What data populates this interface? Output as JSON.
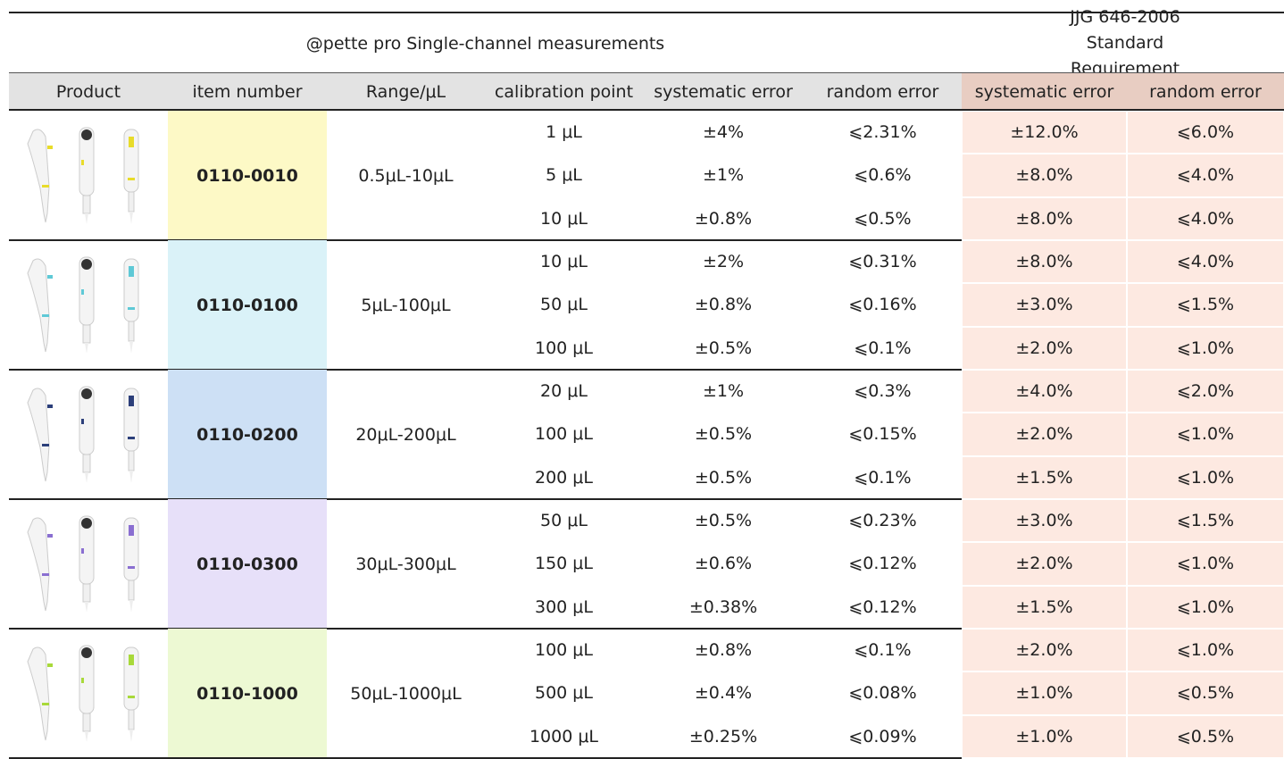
{
  "header": {
    "title": "@pette pro Single-channel  measurements",
    "standard": "JJG 646-2006 Standard Requirement"
  },
  "columns": [
    "Product",
    "item number",
    "Range/μL",
    "calibration point",
    "systematic error",
    "random error",
    "systematic error",
    "random error"
  ],
  "groups": [
    {
      "item": "0110-0010",
      "range": "0.5μL-10μL",
      "rows": [
        [
          "1 μL",
          "±4%",
          "⩽2.31%",
          "±12.0%",
          "⩽6.0%"
        ],
        [
          "5 μL",
          "±1%",
          "⩽0.6%",
          "±8.0%",
          "⩽4.0%"
        ],
        [
          "10 μL",
          "±0.8%",
          "⩽0.5%",
          "±8.0%",
          "⩽4.0%"
        ]
      ]
    },
    {
      "item": "0110-0100",
      "range": "5μL-100μL",
      "rows": [
        [
          "10 μL",
          "±2%",
          "⩽0.31%",
          "±8.0%",
          "⩽4.0%"
        ],
        [
          "50 μL",
          "±0.8%",
          "⩽0.16%",
          "±3.0%",
          "⩽1.5%"
        ],
        [
          "100 μL",
          "±0.5%",
          "⩽0.1%",
          "±2.0%",
          "⩽1.0%"
        ]
      ]
    },
    {
      "item": "0110-0200",
      "range": "20μL-200μL",
      "rows": [
        [
          "20 μL",
          "±1%",
          "⩽0.3%",
          "±4.0%",
          "⩽2.0%"
        ],
        [
          "100 μL",
          "±0.5%",
          "⩽0.15%",
          "±2.0%",
          "⩽1.0%"
        ],
        [
          "200 μL",
          "±0.5%",
          "⩽0.1%",
          "±1.5%",
          "⩽1.0%"
        ]
      ]
    },
    {
      "item": "0110-0300",
      "range": "30μL-300μL",
      "rows": [
        [
          "50 μL",
          "±0.5%",
          "⩽0.23%",
          "±3.0%",
          "⩽1.5%"
        ],
        [
          "150 μL",
          "±0.6%",
          "⩽0.12%",
          "±2.0%",
          "⩽1.0%"
        ],
        [
          "300 μL",
          "±0.38%",
          "⩽0.12%",
          "±1.5%",
          "⩽1.0%"
        ]
      ]
    },
    {
      "item": "0110-1000",
      "range": "50μL-1000μL",
      "rows": [
        [
          "100 μL",
          "±0.8%",
          "⩽0.1%",
          "±2.0%",
          "⩽1.0%"
        ],
        [
          "500 μL",
          "±0.4%",
          "⩽0.08%",
          "±1.0%",
          "⩽0.5%"
        ],
        [
          "1000 μL",
          "±0.25%",
          "⩽0.09%",
          "±1.0%",
          "⩽0.5%"
        ]
      ]
    }
  ]
}
